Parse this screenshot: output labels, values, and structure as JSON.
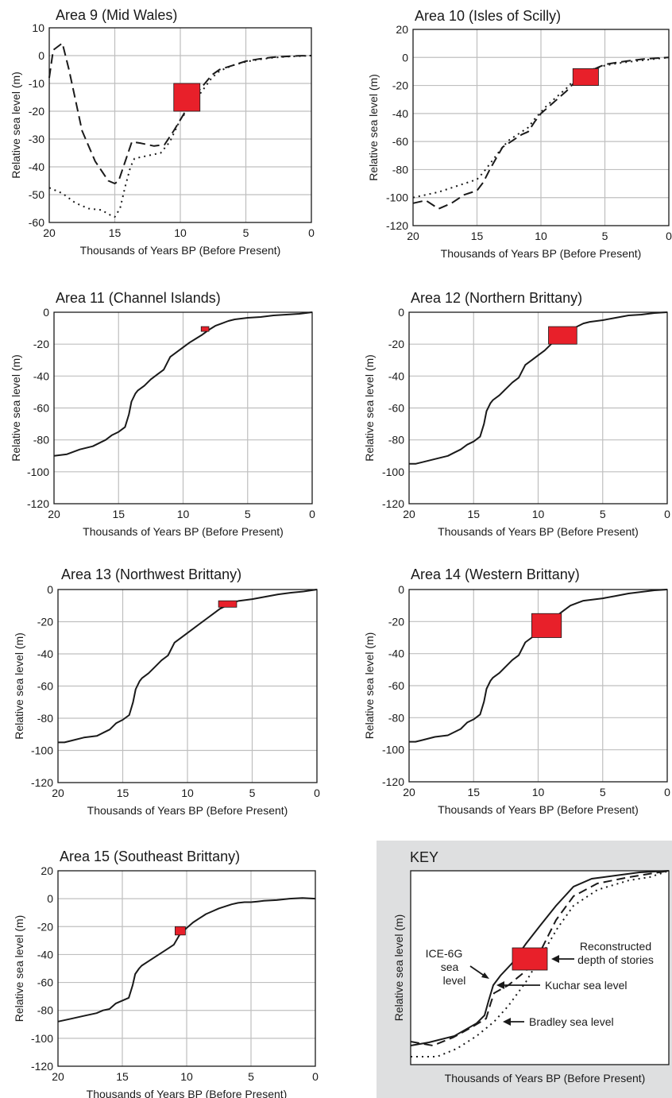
{
  "figure": {
    "chart_data": [
      {
        "type": "line",
        "title": "Area 9 (Mid Wales)",
        "xlabel": "Thousands of Years BP (Before Present)",
        "ylabel": "Relative sea level (m)",
        "xlim": [
          20,
          0
        ],
        "ylim": [
          -60,
          10
        ],
        "xticks": [
          20,
          15,
          10,
          5,
          0
        ],
        "yticks": [
          10,
          0,
          -10,
          -20,
          -30,
          -40,
          -50,
          -60
        ],
        "grid": "vertical",
        "series": [
          {
            "style": "dashed",
            "x": [
              20,
              19.7,
              19,
              18.5,
              17.5,
              16.5,
              15.5,
              15,
              14.7,
              14.2,
              13.7,
              13,
              12,
              11.2,
              10.5,
              9.8,
              9,
              8.3,
              7.6,
              7,
              6,
              5,
              4,
              3,
              2,
              1,
              0
            ],
            "y": [
              -8,
              2,
              4.5,
              -5,
              -27,
              -38,
              -45,
              -46,
              -45,
              -38,
              -31,
              -31.5,
              -32.5,
              -32,
              -27,
              -21.5,
              -15,
              -11,
              -7,
              -5,
              -3.5,
              -2,
              -1.2,
              -0.6,
              -0.3,
              -0.1,
              0
            ]
          },
          {
            "style": "dotted",
            "x": [
              20,
              19,
              18,
              17,
              16,
              15.5,
              15,
              14.6,
              14.2,
              13.8,
              13.5,
              12.5,
              11.5,
              10.8,
              10,
              9,
              8.3,
              7.6,
              7,
              6,
              5,
              4,
              3,
              2,
              1,
              0
            ],
            "y": [
              -47.5,
              -49.5,
              -53,
              -55,
              -55.5,
              -57,
              -58,
              -55,
              -47,
              -40,
              -37,
              -36,
              -35,
              -31,
              -23,
              -17,
              -12.5,
              -8,
              -5.5,
              -3.5,
              -2.2,
              -1.4,
              -0.8,
              -0.4,
              -0.2,
              0
            ]
          }
        ],
        "box": {
          "x": [
            10.5,
            8.5
          ],
          "y": [
            -10,
            -20
          ]
        }
      },
      {
        "type": "line",
        "title": "Area 10 (Isles of Scilly)",
        "xlabel": "Thousands of Years BP (Before Present)",
        "ylabel": "Relative sea level (m)",
        "xlim": [
          20,
          0
        ],
        "ylim": [
          -120,
          20
        ],
        "xticks": [
          20,
          15,
          10,
          5,
          0
        ],
        "yticks": [
          20,
          0,
          -20,
          -40,
          -60,
          -80,
          -100,
          -120
        ],
        "grid": "vertical",
        "series": [
          {
            "style": "dashed",
            "x": [
              20,
              19,
              18,
              17,
              16,
              15,
              14.5,
              14,
              13.5,
              13,
              12.5,
              12,
              11.5,
              11,
              10.5,
              10,
              9.5,
              9,
              8.5,
              8,
              7.5,
              7,
              6.5,
              6,
              5.5,
              5,
              4,
              3,
              2,
              1,
              0
            ],
            "y": [
              -104,
              -102,
              -108,
              -104,
              -98,
              -95,
              -89,
              -80,
              -72,
              -64,
              -61,
              -58,
              -55,
              -53,
              -46,
              -40,
              -36,
              -32,
              -28,
              -24,
              -19,
              -15,
              -12,
              -9,
              -7,
              -5,
              -3.5,
              -2.2,
              -1.2,
              -0.5,
              0
            ]
          },
          {
            "style": "dotted",
            "x": [
              20,
              19,
              18,
              17,
              16,
              15,
              14.5,
              14,
              13.5,
              13,
              12.5,
              12,
              11.5,
              11,
              10.5,
              10,
              9.5,
              9,
              8.5,
              8,
              7.5,
              7,
              6,
              5,
              4,
              3,
              2,
              1,
              0
            ],
            "y": [
              -100,
              -98,
              -96,
              -93,
              -90,
              -87,
              -82,
              -76,
              -70,
              -64,
              -59,
              -56,
              -53,
              -50,
              -44,
              -39,
              -34,
              -30,
              -26,
              -22,
              -17,
              -14,
              -8.5,
              -5.8,
              -4.2,
              -3,
              -2,
              -1,
              0
            ]
          }
        ],
        "box": {
          "x": [
            7.5,
            5.5
          ],
          "y": [
            -8,
            -20
          ]
        }
      },
      {
        "type": "line",
        "title": "Area 11 (Channel Islands)",
        "xlabel": "Thousands of Years BP (Before Present)",
        "ylabel": "Relative sea level (m)",
        "xlim": [
          20,
          0
        ],
        "ylim": [
          -120,
          0
        ],
        "xticks": [
          20,
          15,
          10,
          5,
          0
        ],
        "yticks": [
          0,
          -20,
          -40,
          -60,
          -80,
          -100,
          -120
        ],
        "grid": "vertical",
        "series": [
          {
            "style": "solid",
            "x": [
              20,
              19,
              18,
              17,
              16.5,
              16,
              15.5,
              15,
              14.5,
              14.2,
              14,
              13.7,
              13.5,
              13,
              12.5,
              12,
              11.5,
              11,
              10.5,
              10,
              9.5,
              9,
              8.5,
              8,
              7.5,
              7,
              6.5,
              6,
              5,
              4,
              3,
              2,
              1,
              0
            ],
            "y": [
              -90,
              -89,
              -86,
              -84,
              -82,
              -80,
              -77,
              -75,
              -72,
              -64,
              -56,
              -51,
              -49,
              -46,
              -42,
              -39,
              -36,
              -28,
              -25,
              -22,
              -19,
              -16.5,
              -14,
              -11,
              -8.5,
              -7,
              -5.5,
              -4.5,
              -3.5,
              -3,
              -2,
              -1.5,
              -1,
              0
            ]
          }
        ],
        "box": {
          "x": [
            8.6,
            8.0
          ],
          "y": [
            -9,
            -12
          ]
        }
      },
      {
        "type": "line",
        "title": "Area 12 (Northern Brittany)",
        "xlabel": "Thousands of Years BP (Before Present)",
        "ylabel": "Relative sea level (m)",
        "xlim": [
          20,
          0
        ],
        "ylim": [
          -120,
          0
        ],
        "xticks": [
          20,
          15,
          10,
          5,
          0
        ],
        "yticks": [
          0,
          -20,
          -40,
          -60,
          -80,
          -100,
          -120
        ],
        "grid": "vertical",
        "series": [
          {
            "style": "solid",
            "x": [
              20,
              19.5,
              19,
              18,
              17,
              16.5,
              16,
              15.5,
              15,
              14.5,
              14.2,
              14,
              13.7,
              13.5,
              13,
              12.5,
              12,
              11.5,
              11,
              10.5,
              10,
              9.5,
              9,
              8.5,
              8,
              7.5,
              7,
              6.5,
              6,
              5,
              4,
              3,
              2,
              1,
              0
            ],
            "y": [
              -95,
              -95,
              -94,
              -92,
              -90,
              -88,
              -86,
              -83,
              -81,
              -78,
              -70,
              -62,
              -57,
              -55,
              -52,
              -48,
              -44,
              -41,
              -33,
              -30,
              -27,
              -24,
              -20,
              -17,
              -14,
              -11,
              -9,
              -7,
              -6,
              -5,
              -3.5,
              -2,
              -1.5,
              -0.5,
              0
            ]
          }
        ],
        "box": {
          "x": [
            9.2,
            7.0
          ],
          "y": [
            -9,
            -20
          ]
        }
      },
      {
        "type": "line",
        "title": "Area 13 (Northwest Brittany)",
        "xlabel": "Thousands of Years BP (Before Present)",
        "ylabel": "Relative sea level (m)",
        "xlim": [
          20,
          0
        ],
        "ylim": [
          -120,
          0
        ],
        "xticks": [
          20,
          15,
          10,
          5,
          0
        ],
        "yticks": [
          0,
          -20,
          -40,
          -60,
          -80,
          -100,
          -120
        ],
        "grid": "vertical",
        "series": [
          {
            "style": "solid",
            "x": [
              20,
              19.5,
              19,
              18,
              17,
              16.5,
              16,
              15.5,
              15,
              14.5,
              14.2,
              14,
              13.7,
              13.5,
              13,
              12.5,
              12,
              11.5,
              11,
              10.5,
              10,
              9.5,
              9,
              8.5,
              8,
              7.5,
              7,
              6.5,
              6,
              5,
              4,
              3,
              2,
              1,
              0
            ],
            "y": [
              -95,
              -95,
              -94,
              -92,
              -91,
              -89,
              -87,
              -83,
              -81,
              -78,
              -70,
              -62,
              -57,
              -55,
              -52,
              -48,
              -44,
              -41,
              -33,
              -30,
              -27,
              -24,
              -21,
              -18,
              -15,
              -12,
              -10,
              -8,
              -7,
              -6,
              -4.5,
              -3,
              -2,
              -1.2,
              0
            ]
          }
        ],
        "box": {
          "x": [
            7.6,
            6.2
          ],
          "y": [
            -7,
            -11
          ]
        }
      },
      {
        "type": "line",
        "title": "Area 14 (Western Brittany)",
        "xlabel": "Thousands of Years BP (Before Present)",
        "ylabel": "Relative sea level (m)",
        "xlim": [
          20,
          0
        ],
        "ylim": [
          -120,
          0
        ],
        "xticks": [
          20,
          15,
          10,
          5,
          0
        ],
        "yticks": [
          0,
          -20,
          -40,
          -60,
          -80,
          -100,
          -120
        ],
        "grid": "vertical",
        "series": [
          {
            "style": "solid",
            "x": [
              20,
              19.5,
              19,
              18,
              17,
              16.5,
              16,
              15.5,
              15,
              14.5,
              14.2,
              14,
              13.7,
              13.5,
              13,
              12.5,
              12,
              11.5,
              11,
              10.5,
              10,
              9.5,
              9,
              8.5,
              8,
              7.5,
              7,
              6.5,
              6,
              5,
              4,
              3,
              2,
              1,
              0
            ],
            "y": [
              -95,
              -95,
              -94,
              -92,
              -91,
              -89,
              -87,
              -83,
              -81,
              -78,
              -70,
              -62,
              -57,
              -55,
              -52,
              -48,
              -44,
              -41,
              -33,
              -30,
              -27,
              -24,
              -20,
              -16,
              -13,
              -10,
              -8.5,
              -7,
              -6.5,
              -5.5,
              -4,
              -2.5,
              -1.5,
              -0.5,
              0
            ]
          }
        ],
        "box": {
          "x": [
            10.5,
            8.2
          ],
          "y": [
            -15,
            -30
          ]
        }
      },
      {
        "type": "line",
        "title": "Area 15 (Southeast Brittany)",
        "xlabel": "Thousands of Years BP (Before Present)",
        "ylabel": "Relative sea level (m)",
        "xlim": [
          20,
          0
        ],
        "ylim": [
          -120,
          20
        ],
        "xticks": [
          20,
          15,
          10,
          5,
          0
        ],
        "yticks": [
          20,
          0,
          -20,
          -40,
          -60,
          -80,
          -100,
          -120
        ],
        "grid": "vertical",
        "series": [
          {
            "style": "solid",
            "x": [
              20,
              19,
              18,
              17,
              16.5,
              16,
              15.5,
              15,
              14.5,
              14.2,
              14,
              13.7,
              13.5,
              13,
              12.5,
              12,
              11.5,
              11,
              10.5,
              10,
              9.5,
              9,
              8.5,
              8,
              7.5,
              7,
              6.5,
              6,
              5.5,
              5,
              4.5,
              4,
              3,
              2,
              1,
              0
            ],
            "y": [
              -88,
              -86,
              -84,
              -82,
              -80,
              -79,
              -75,
              -73,
              -71,
              -62,
              -54,
              -50,
              -48,
              -45,
              -42,
              -39,
              -36,
              -33,
              -25,
              -21,
              -17,
              -14,
              -11,
              -9,
              -7,
              -5.5,
              -4,
              -3,
              -2.5,
              -2.5,
              -2,
              -1.5,
              -1,
              0,
              0.5,
              0
            ]
          }
        ],
        "box": {
          "x": [
            10.9,
            10.1
          ],
          "y": [
            -20,
            -26
          ]
        }
      }
    ],
    "key": {
      "title": "KEY",
      "ylabel": "Relative sea level (m)",
      "xlabel": "Thousands of Years BP (Before Present)",
      "labels": {
        "ice_line1": "ICE-6G",
        "ice_line2": "sea",
        "ice_line3": "level",
        "recon_line1": "Reconstructed",
        "recon_line2": "depth of stories",
        "kuchar": "Kuchar sea level",
        "bradley": "Bradley sea level"
      }
    },
    "colors": {
      "line": "#1a1a1a",
      "box": "#e8202a",
      "grid": "#bfbfbf",
      "key_background": "#dedfe0"
    }
  }
}
